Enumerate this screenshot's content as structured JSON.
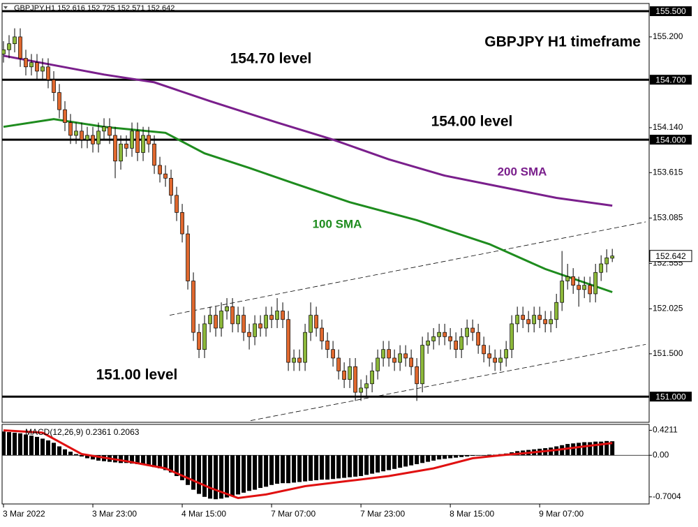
{
  "chart_data": [
    {
      "type": "candlestick",
      "title": "GBPJPY,H1  152.616 152.725 152.571 152.642",
      "annotation": "GBPJPY H1 timeframe",
      "up_color": "#8cb83a",
      "down_color": "#e0682e",
      "open": [
        155.0,
        155.05,
        155.12,
        155.2,
        154.95,
        154.85,
        154.9,
        154.8,
        154.85,
        154.7,
        154.55,
        154.35,
        154.2,
        154.05,
        154.1,
        154.0,
        154.05,
        153.95,
        154.1,
        154.15,
        154.05,
        153.75,
        153.95,
        153.9,
        154.1,
        153.85,
        154.05,
        153.95,
        153.7,
        153.6,
        153.55,
        153.35,
        153.15,
        152.9,
        152.35,
        151.75,
        151.55,
        151.85,
        151.95,
        151.8,
        152.0,
        152.05,
        151.85,
        151.95,
        151.75,
        151.7,
        151.85,
        151.8,
        151.95,
        151.9,
        152.0,
        151.9,
        151.4,
        151.45,
        151.4,
        151.75,
        151.95,
        151.8,
        151.65,
        151.55,
        151.45,
        151.3,
        151.2,
        151.35,
        151.05,
        151.1,
        151.15,
        151.3,
        151.45,
        151.55,
        151.45,
        151.4,
        151.5,
        151.45,
        151.35,
        151.15,
        151.6,
        151.65,
        151.7,
        151.75,
        151.7,
        151.65,
        151.55,
        151.7,
        151.8,
        151.75,
        151.6,
        151.5,
        151.45,
        151.4,
        151.45,
        151.55,
        151.85,
        151.95,
        151.9,
        151.85,
        151.95,
        151.9,
        151.85,
        151.9,
        152.1,
        152.35,
        152.4,
        152.3,
        152.25,
        152.3,
        152.2,
        152.45,
        152.55,
        152.616
      ],
      "high": [
        155.15,
        155.22,
        155.3,
        155.3,
        155.05,
        155.0,
        155.0,
        154.95,
        154.95,
        154.8,
        154.65,
        154.45,
        154.3,
        154.2,
        154.2,
        154.15,
        154.15,
        154.2,
        154.25,
        154.25,
        154.15,
        154.05,
        154.05,
        154.2,
        154.2,
        154.15,
        154.15,
        154.05,
        153.8,
        153.7,
        153.65,
        153.45,
        153.25,
        153.0,
        152.45,
        151.85,
        151.95,
        152.05,
        152.05,
        152.1,
        152.15,
        152.15,
        152.05,
        152.05,
        151.85,
        151.95,
        151.95,
        152.05,
        152.05,
        152.15,
        152.1,
        152.0,
        151.55,
        151.55,
        151.85,
        152.1,
        152.05,
        151.9,
        151.75,
        151.65,
        151.55,
        151.4,
        151.45,
        151.45,
        151.2,
        151.25,
        151.4,
        151.55,
        151.65,
        151.65,
        151.55,
        151.6,
        151.6,
        151.55,
        151.45,
        151.7,
        151.75,
        151.8,
        151.85,
        151.85,
        151.8,
        151.75,
        151.8,
        151.9,
        151.9,
        151.85,
        151.7,
        151.6,
        151.55,
        151.55,
        151.65,
        151.95,
        152.05,
        152.05,
        152.0,
        152.05,
        152.05,
        152.0,
        152.0,
        152.2,
        152.7,
        152.55,
        152.5,
        152.4,
        152.4,
        152.4,
        152.55,
        152.65,
        152.72,
        152.725
      ],
      "low": [
        154.9,
        154.95,
        155.02,
        154.85,
        154.75,
        154.75,
        154.7,
        154.7,
        154.6,
        154.45,
        154.25,
        154.1,
        153.95,
        153.95,
        153.9,
        153.9,
        153.85,
        153.85,
        154.0,
        153.95,
        153.55,
        153.65,
        153.8,
        153.8,
        153.75,
        153.75,
        153.85,
        153.6,
        153.5,
        153.45,
        153.25,
        153.05,
        152.8,
        152.25,
        151.65,
        151.45,
        151.45,
        151.75,
        151.7,
        151.7,
        151.9,
        151.75,
        151.75,
        151.65,
        151.55,
        151.6,
        151.7,
        151.7,
        151.8,
        151.8,
        151.8,
        151.3,
        151.3,
        151.3,
        151.3,
        151.65,
        151.7,
        151.55,
        151.45,
        151.35,
        151.2,
        151.1,
        151.1,
        150.95,
        150.95,
        151.0,
        151.05,
        151.2,
        151.35,
        151.35,
        151.3,
        151.3,
        151.35,
        151.25,
        150.95,
        151.05,
        151.5,
        151.55,
        151.6,
        151.6,
        151.55,
        151.45,
        151.45,
        151.6,
        151.65,
        151.5,
        151.4,
        151.35,
        151.3,
        151.3,
        151.35,
        151.45,
        151.75,
        151.8,
        151.75,
        151.75,
        151.8,
        151.75,
        151.75,
        151.8,
        152.0,
        152.25,
        152.2,
        152.05,
        152.15,
        152.1,
        152.1,
        152.35,
        152.45,
        152.571
      ],
      "close": [
        155.05,
        155.12,
        155.2,
        154.95,
        154.85,
        154.9,
        154.8,
        154.85,
        154.7,
        154.55,
        154.35,
        154.2,
        154.05,
        154.1,
        154.0,
        154.05,
        153.95,
        154.1,
        154.15,
        154.05,
        153.75,
        153.95,
        153.9,
        154.1,
        153.85,
        154.05,
        153.95,
        153.7,
        153.6,
        153.55,
        153.35,
        153.15,
        152.9,
        152.35,
        151.75,
        151.55,
        151.85,
        151.95,
        151.8,
        152.0,
        152.05,
        151.85,
        151.95,
        151.75,
        151.7,
        151.85,
        151.8,
        151.95,
        151.9,
        152.0,
        151.9,
        151.4,
        151.45,
        151.4,
        151.75,
        151.95,
        151.8,
        151.65,
        151.55,
        151.45,
        151.3,
        151.2,
        151.35,
        151.05,
        151.1,
        151.15,
        151.3,
        151.45,
        151.55,
        151.45,
        151.4,
        151.5,
        151.45,
        151.35,
        151.15,
        151.6,
        151.65,
        151.7,
        151.75,
        151.7,
        151.65,
        151.55,
        151.7,
        151.8,
        151.75,
        151.6,
        151.5,
        151.45,
        151.4,
        151.45,
        151.55,
        151.85,
        151.95,
        151.9,
        151.85,
        151.95,
        151.9,
        151.85,
        151.9,
        152.1,
        152.35,
        152.4,
        152.3,
        152.25,
        152.3,
        152.2,
        152.45,
        152.55,
        152.62,
        152.642
      ],
      "last_price_label": "152.642",
      "series": [
        {
          "name": "100 SMA",
          "color": "#1e8c1e",
          "x": [
            0,
            9,
            18,
            29,
            36,
            44,
            52,
            62,
            74,
            87,
            97,
            109
          ],
          "values": [
            154.15,
            154.24,
            154.15,
            154.08,
            153.84,
            153.67,
            153.49,
            153.27,
            153.06,
            152.78,
            152.49,
            152.22
          ]
        },
        {
          "name": "200 SMA",
          "color": "#7a1f8c",
          "x": [
            0,
            9,
            18,
            27,
            37,
            49,
            59,
            69,
            79,
            89,
            99,
            109
          ],
          "values": [
            154.98,
            154.87,
            154.76,
            154.67,
            154.45,
            154.2,
            154.0,
            153.77,
            153.58,
            153.45,
            153.32,
            153.23
          ]
        }
      ],
      "trendlines": [
        {
          "x": [
            29.75,
            115
          ],
          "values": [
            151.95,
            153.04
          ]
        },
        {
          "x": [
            44.25,
            115
          ],
          "values": [
            150.72,
            151.61
          ]
        }
      ],
      "levels": [
        {
          "value": 155.5,
          "label": "155.500"
        },
        {
          "value": 154.7,
          "label": "154.700",
          "name": "154.70 level"
        },
        {
          "value": 154.0,
          "label": "154.000",
          "name": "154.00 level"
        },
        {
          "value": 151.0,
          "label": "151.000",
          "name": "151.00 level"
        }
      ],
      "xlim": [
        -0.25,
        115.6
      ],
      "xticks": [
        {
          "value": 0,
          "label": "3 Mar 2022"
        },
        {
          "value": 16,
          "label": "3 Mar 23:00"
        },
        {
          "value": 32,
          "label": "4 Mar 15:00"
        },
        {
          "value": 48,
          "label": "7 Mar 07:00"
        },
        {
          "value": 64,
          "label": "7 Mar 23:00"
        },
        {
          "value": 80,
          "label": "8 Mar 15:00"
        },
        {
          "value": 96,
          "label": "9 Mar 07:00"
        }
      ],
      "ylim": [
        150.7,
        155.59
      ],
      "yticks": [
        {
          "value": 155.2,
          "label": "155.200"
        },
        {
          "value": 154.14,
          "label": "154.140"
        },
        153.615,
        153.085,
        152.555,
        152.025,
        {
          "value": 151.5,
          "label": "151.500"
        }
      ]
    },
    {
      "type": "macd",
      "title": "MACD(12,26,9) 0.2361 0.2063",
      "color": "#000000",
      "values": [
        0.4,
        0.39,
        0.38,
        0.37,
        0.35,
        0.33,
        0.31,
        0.28,
        0.25,
        0.21,
        0.15,
        0.1,
        0.06,
        0.02,
        -0.02,
        -0.05,
        -0.07,
        -0.09,
        -0.1,
        -0.11,
        -0.12,
        -0.13,
        -0.13,
        -0.14,
        -0.15,
        -0.16,
        -0.18,
        -0.2,
        -0.22,
        -0.25,
        -0.29,
        -0.35,
        -0.42,
        -0.5,
        -0.58,
        -0.65,
        -0.7,
        -0.73,
        -0.74,
        -0.73,
        -0.71,
        -0.68,
        -0.66,
        -0.63,
        -0.6,
        -0.58,
        -0.55,
        -0.53,
        -0.5,
        -0.48,
        -0.47,
        -0.47,
        -0.46,
        -0.45,
        -0.44,
        -0.43,
        -0.42,
        -0.41,
        -0.41,
        -0.4,
        -0.39,
        -0.38,
        -0.37,
        -0.36,
        -0.35,
        -0.33,
        -0.31,
        -0.29,
        -0.27,
        -0.25,
        -0.23,
        -0.21,
        -0.19,
        -0.17,
        -0.15,
        -0.13,
        -0.11,
        -0.09,
        -0.07,
        -0.06,
        -0.05,
        -0.04,
        -0.03,
        -0.02,
        -0.01,
        0.0,
        0.0,
        0.01,
        0.01,
        0.02,
        0.03,
        0.05,
        0.07,
        0.08,
        0.09,
        0.1,
        0.11,
        0.12,
        0.13,
        0.15,
        0.17,
        0.19,
        0.2,
        0.21,
        0.22,
        0.22,
        0.23,
        0.23,
        0.24,
        0.2361
      ],
      "series": [
        {
          "color": "#e01010",
          "x": [
            0,
            7,
            14,
            22,
            29,
            37,
            42,
            47,
            54,
            62,
            69,
            77,
            84,
            89,
            94,
            99,
            104,
            109
          ],
          "values": [
            0.42,
            0.38,
            0.02,
            -0.1,
            -0.22,
            -0.55,
            -0.72,
            -0.66,
            -0.52,
            -0.43,
            -0.35,
            -0.22,
            -0.05,
            0.0,
            0.04,
            0.09,
            0.15,
            0.2063
          ]
        }
      ],
      "ylim": [
        -0.82,
        0.52
      ],
      "yticks": [
        0.4211,
        {
          "value": 0,
          "label": "0.00"
        },
        -0.7004
      ]
    }
  ]
}
